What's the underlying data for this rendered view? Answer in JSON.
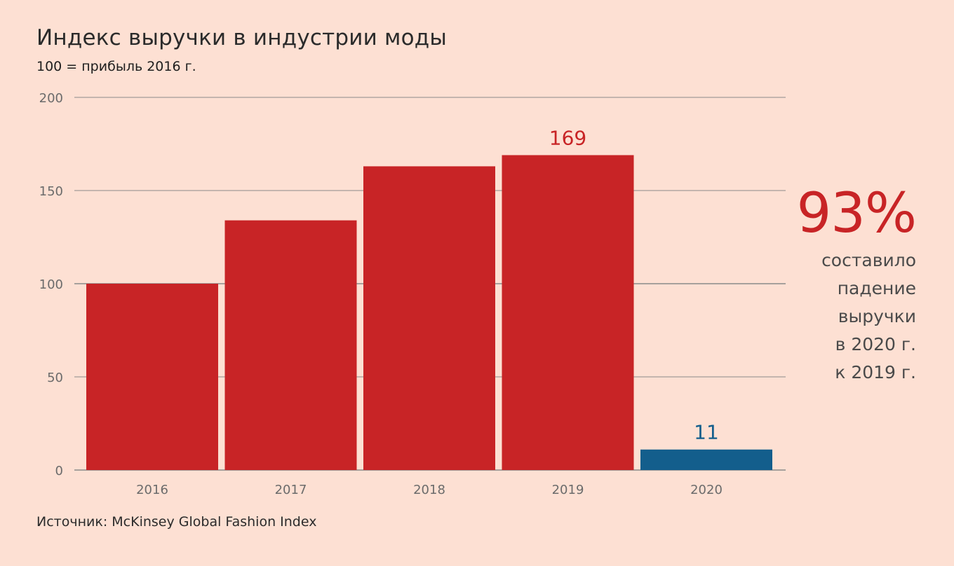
{
  "title": "Индекс выручки в индустрии моды",
  "subtitle": "100 = прибыль 2016 г.",
  "source": "Источник: McKinsey Global Fashion Index",
  "callout": {
    "value": "93%",
    "lines": [
      "составило",
      "падение",
      "выручки",
      "в 2020 г.",
      "к 2019 г."
    ]
  },
  "colors": {
    "background": "#fde0d3",
    "bar_default": "#c82426",
    "bar_highlight": "#135e8c",
    "grid": "#8a8a8a",
    "axis_text": "#6b6b6b"
  },
  "chart_data": {
    "type": "bar",
    "title": "Индекс выручки в индустрии моды",
    "subtitle": "100 = прибыль 2016 г.",
    "categories": [
      "2016",
      "2017",
      "2018",
      "2019",
      "2020"
    ],
    "values": [
      100,
      134,
      163,
      169,
      11
    ],
    "bar_colors": [
      "#c82426",
      "#c82426",
      "#c82426",
      "#c82426",
      "#135e8c"
    ],
    "data_labels": [
      {
        "index": 3,
        "text": "169",
        "color": "#c82426"
      },
      {
        "index": 4,
        "text": "11",
        "color": "#135e8c"
      }
    ],
    "ylim": [
      0,
      200
    ],
    "yticks": [
      0,
      50,
      100,
      150,
      200
    ],
    "xlabel": "",
    "ylabel": "",
    "grid": true,
    "legend": "none"
  }
}
